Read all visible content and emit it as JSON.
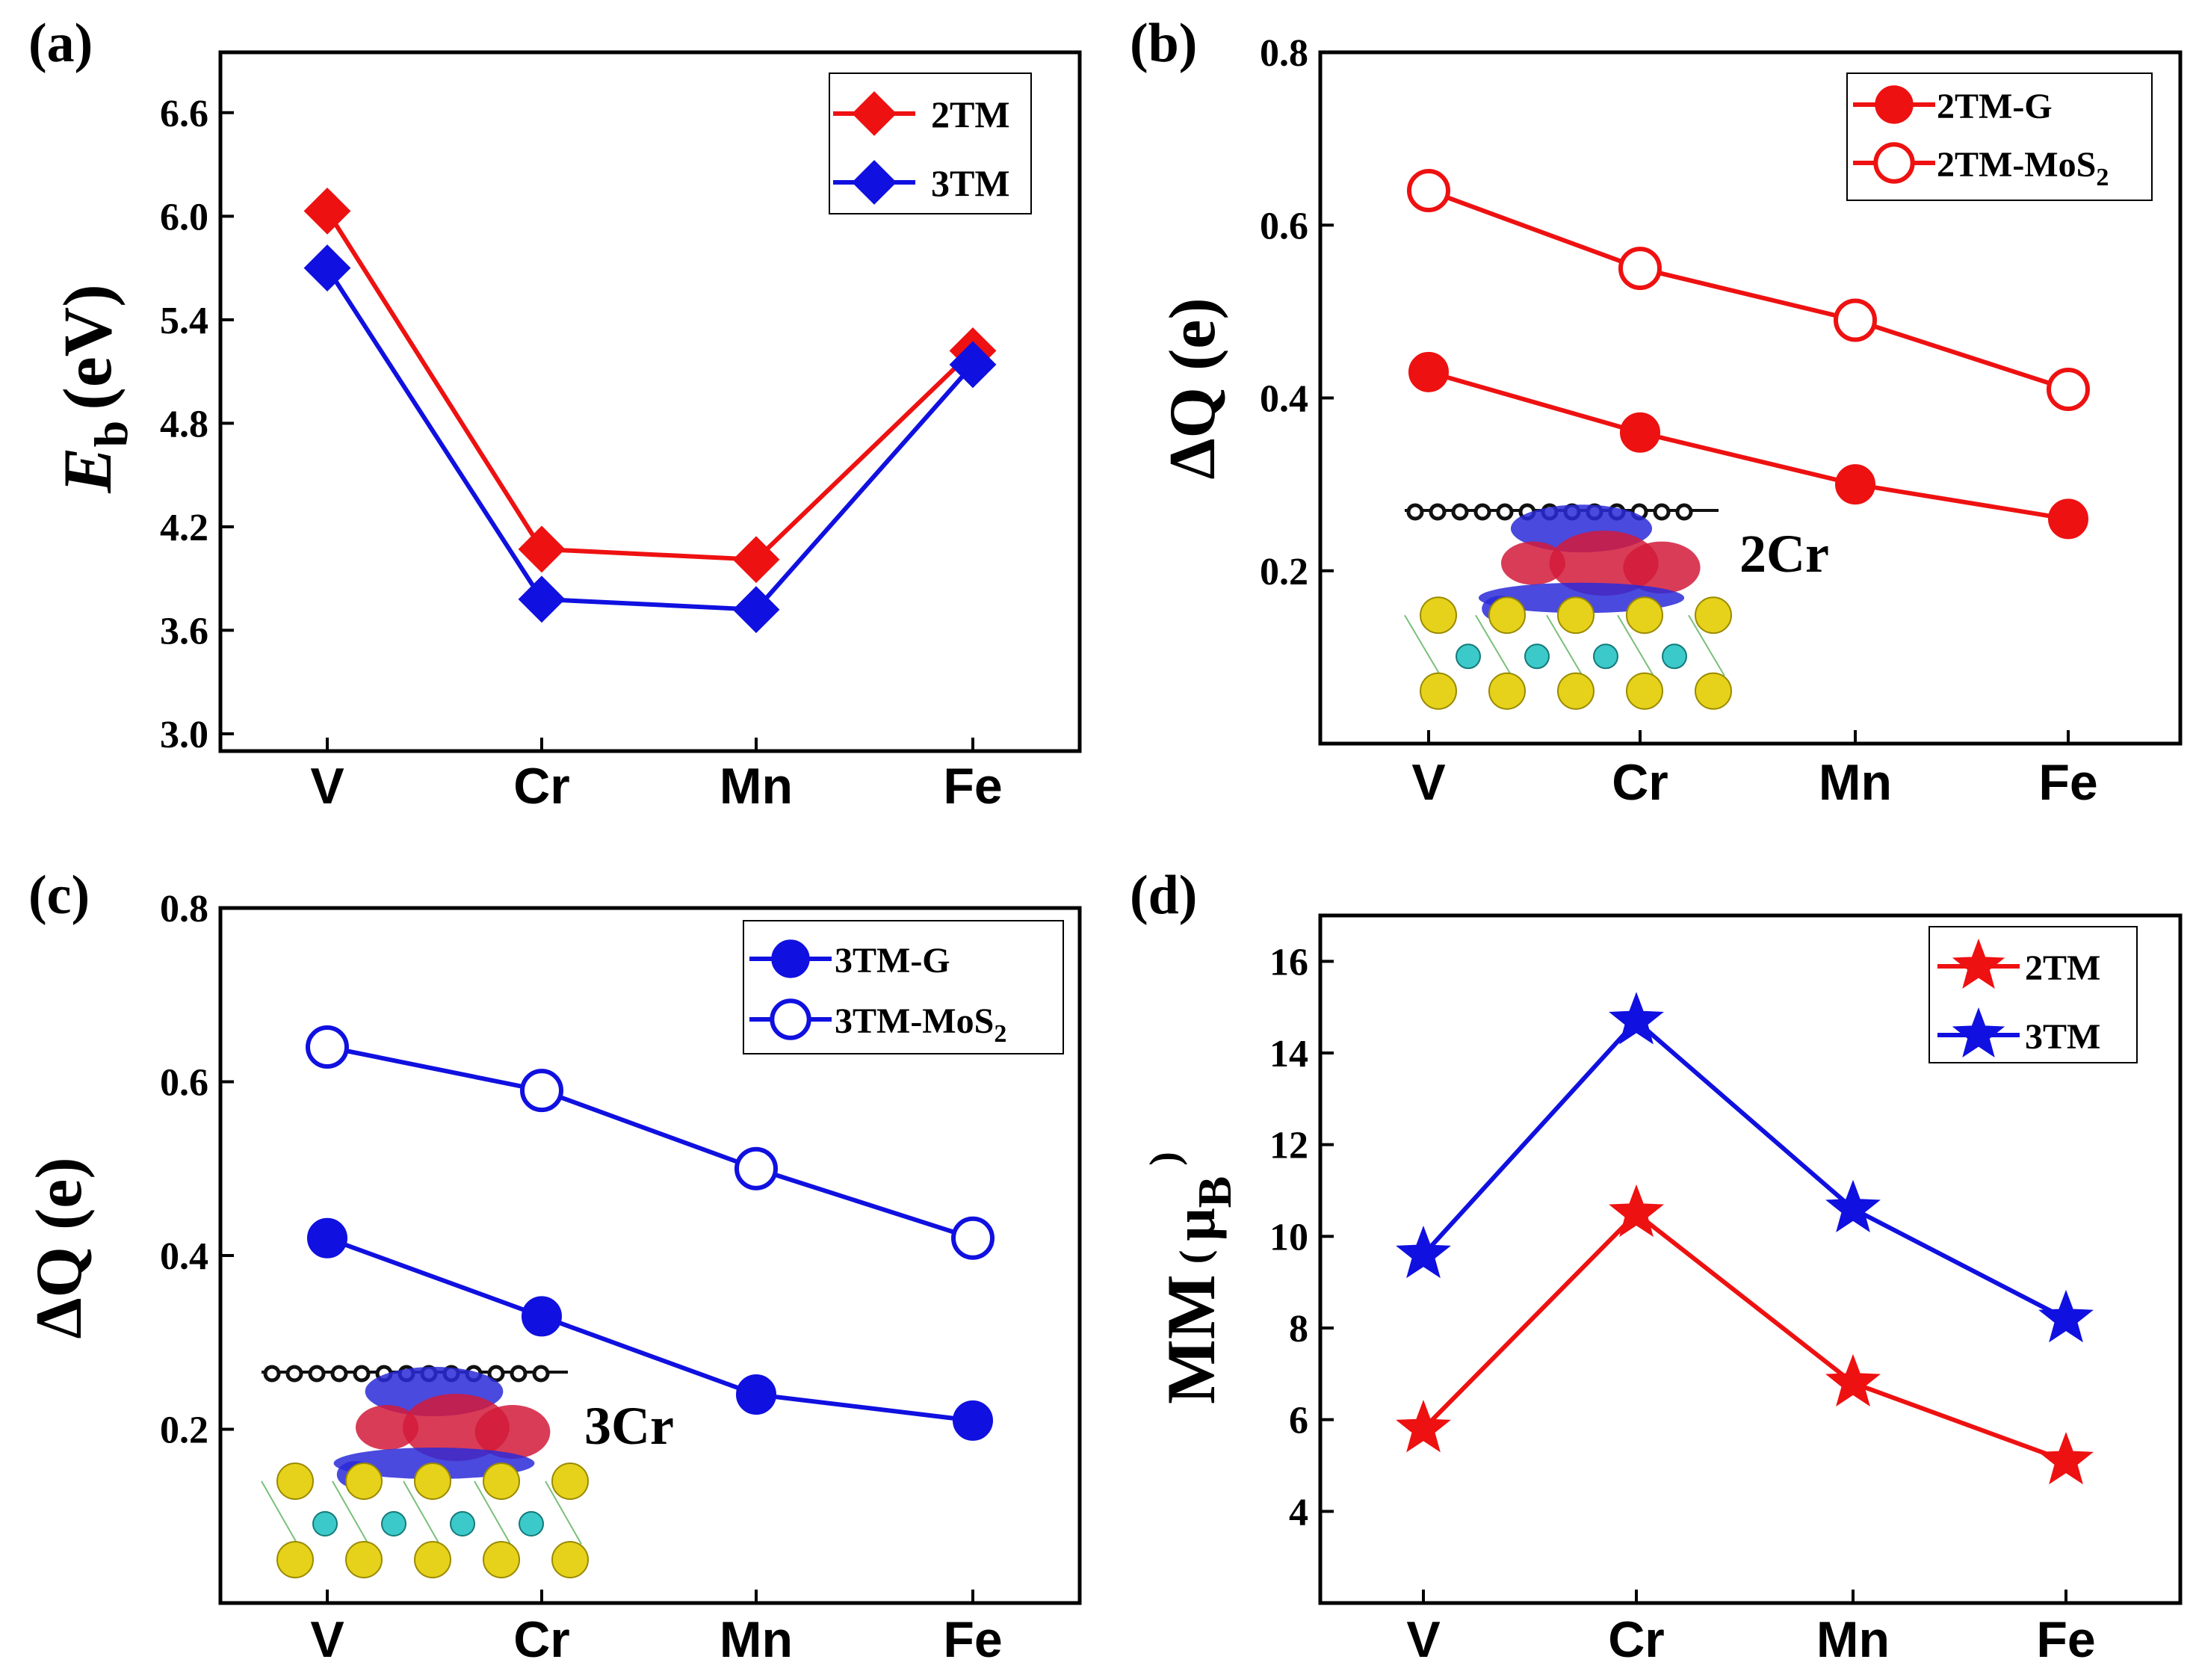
{
  "figure": {
    "colors": {
      "red": "#ee1111",
      "blue": "#1010e0",
      "axis": "#000000"
    }
  },
  "chart_data": [
    {
      "panel": "(a)",
      "type": "line",
      "categories": [
        "V",
        "Cr",
        "Mn",
        "Fe"
      ],
      "ylabel_main": "E",
      "ylabel_sub": "b",
      "ylabel_unit": "(eV)",
      "ylim": [
        2.9,
        6.95
      ],
      "yticks": [
        3.0,
        3.6,
        4.2,
        4.8,
        5.4,
        6.0,
        6.6
      ],
      "ytick_labels": [
        "3.0",
        "3.6",
        "4.2",
        "4.8",
        "5.4",
        "6.0",
        "6.6"
      ],
      "legend_position": "top-right",
      "series": [
        {
          "name": "2TM",
          "color": "red",
          "marker": "diamond",
          "filled": true,
          "values": [
            6.03,
            4.07,
            4.01,
            5.22
          ]
        },
        {
          "name": "3TM",
          "color": "blue",
          "marker": "diamond",
          "filled": true,
          "values": [
            5.7,
            3.78,
            3.72,
            5.14
          ]
        }
      ]
    },
    {
      "panel": "(b)",
      "type": "line",
      "categories": [
        "V",
        "Cr",
        "Mn",
        "Fe"
      ],
      "ylabel": "ΔQ (e)",
      "ylim": [
        0.0,
        0.8
      ],
      "yticks": [
        0.2,
        0.4,
        0.6,
        0.8
      ],
      "ytick_labels": [
        "0.2",
        "0.4",
        "0.6",
        "0.8"
      ],
      "legend_position": "top-right",
      "inset_label": "2Cr",
      "series": [
        {
          "name": "2TM-G",
          "name_main": "2TM-G",
          "name_sub": "",
          "color": "red",
          "marker": "circle",
          "filled": true,
          "values": [
            0.43,
            0.36,
            0.3,
            0.26
          ]
        },
        {
          "name": "2TM-MoS2",
          "name_main": "2TM-MoS",
          "name_sub": "2",
          "color": "red",
          "marker": "circle",
          "filled": false,
          "values": [
            0.64,
            0.55,
            0.49,
            0.41
          ]
        }
      ]
    },
    {
      "panel": "(c)",
      "type": "line",
      "categories": [
        "V",
        "Cr",
        "Mn",
        "Fe"
      ],
      "ylabel": "ΔQ (e)",
      "ylim": [
        0.0,
        0.8
      ],
      "yticks": [
        0.2,
        0.4,
        0.6,
        0.8
      ],
      "ytick_labels": [
        "0.2",
        "0.4",
        "0.6",
        "0.8"
      ],
      "legend_position": "top-right",
      "inset_label": "3Cr",
      "series": [
        {
          "name": "3TM-G",
          "name_main": "3TM-G",
          "name_sub": "",
          "color": "blue",
          "marker": "circle",
          "filled": true,
          "values": [
            0.42,
            0.33,
            0.24,
            0.21
          ]
        },
        {
          "name": "3TM-MoS2",
          "name_main": "3TM-MoS",
          "name_sub": "2",
          "color": "blue",
          "marker": "circle",
          "filled": false,
          "values": [
            0.64,
            0.59,
            0.5,
            0.42
          ]
        }
      ]
    },
    {
      "panel": "(d)",
      "type": "line",
      "categories": [
        "V",
        "Cr",
        "Mn",
        "Fe"
      ],
      "ylabel_main": "MM",
      "ylabel_open": "(",
      "ylabel_mu": "μ",
      "ylabel_sub": "B",
      "ylabel_close": ")",
      "ylim": [
        2.0,
        17.0
      ],
      "yticks": [
        4,
        6,
        8,
        10,
        12,
        14,
        16
      ],
      "ytick_labels": [
        "4",
        "6",
        "8",
        "10",
        "12",
        "14",
        "16"
      ],
      "legend_position": "top-right",
      "series": [
        {
          "name": "2TM",
          "color": "red",
          "marker": "star",
          "filled": true,
          "values": [
            5.8,
            10.5,
            6.8,
            5.1
          ]
        },
        {
          "name": "3TM",
          "color": "blue",
          "marker": "star",
          "filled": true,
          "values": [
            9.6,
            14.7,
            10.6,
            8.2
          ]
        }
      ]
    }
  ]
}
